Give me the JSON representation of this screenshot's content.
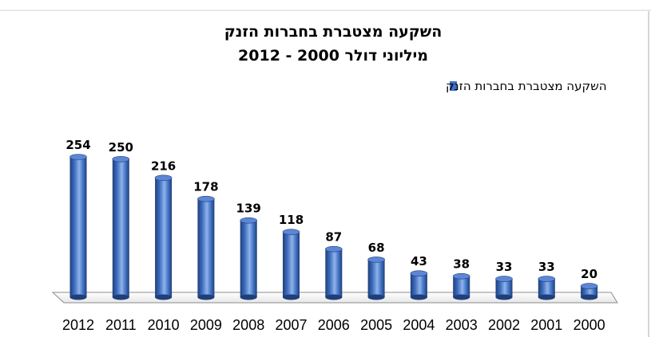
{
  "chart_data": {
    "type": "bar",
    "title": "השקעה מצטברת בחברות הזנק",
    "subtitle": "מיליוני דולר 2000 - 2012",
    "series": [
      {
        "name": "השקעה מצטברת בחברות הזנק",
        "values": [
          254,
          250,
          216,
          178,
          139,
          118,
          87,
          68,
          43,
          38,
          33,
          33,
          20
        ]
      }
    ],
    "categories": [
      "2012",
      "2011",
      "2010",
      "2009",
      "2008",
      "2007",
      "2006",
      "2005",
      "2004",
      "2003",
      "2002",
      "2001",
      "2000"
    ],
    "ylim": [
      0,
      254
    ],
    "legend_position": "top",
    "grid": false,
    "colors": {
      "bar": "#3f6fc0",
      "bar_dark": "#1f3f7a",
      "bar_light": "#8fb2ea",
      "bar_top": "#5d87d6"
    }
  }
}
